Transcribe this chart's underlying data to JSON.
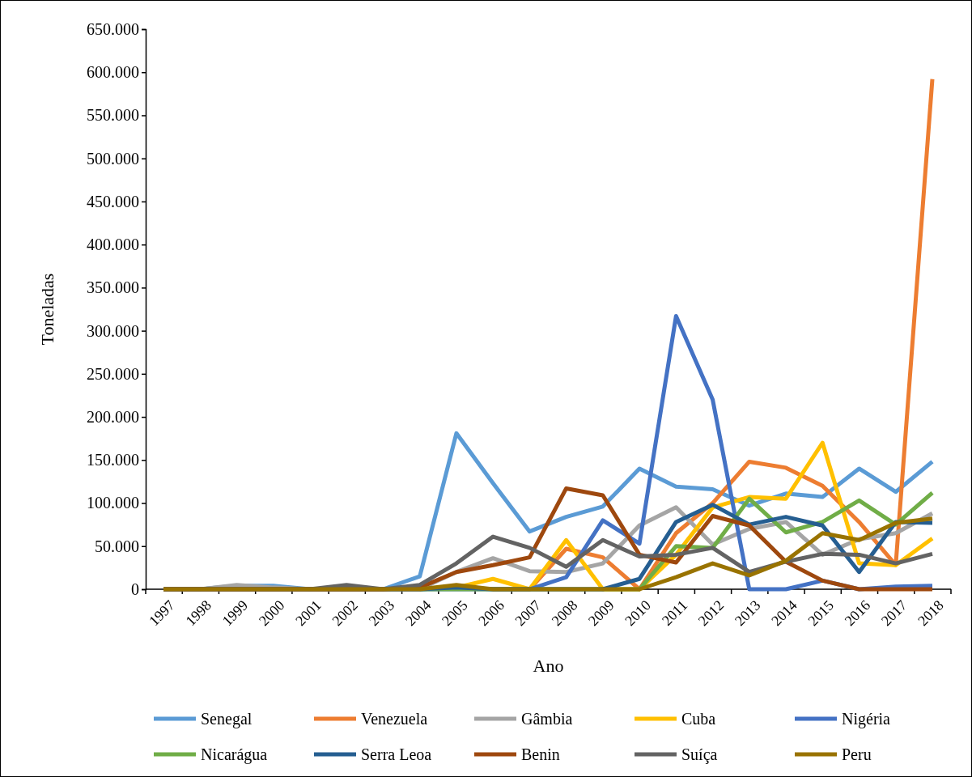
{
  "chart_data": {
    "type": "line",
    "xlabel": "Ano",
    "ylabel": "Toneladas",
    "categories": [
      "1997",
      "1998",
      "1999",
      "2000",
      "2001",
      "2002",
      "2003",
      "2004",
      "2005",
      "2006",
      "2007",
      "2008",
      "2009",
      "2010",
      "2011",
      "2012",
      "2013",
      "2014",
      "2015",
      "2016",
      "2017",
      "2018"
    ],
    "ylim": [
      0,
      650000
    ],
    "yticks": [
      {
        "value": 0,
        "label": "0"
      },
      {
        "value": 50000,
        "label": "50.000"
      },
      {
        "value": 100000,
        "label": "100.000"
      },
      {
        "value": 150000,
        "label": "150.000"
      },
      {
        "value": 200000,
        "label": "200.000"
      },
      {
        "value": 250000,
        "label": "250.000"
      },
      {
        "value": 300000,
        "label": "300.000"
      },
      {
        "value": 350000,
        "label": "350.000"
      },
      {
        "value": 400000,
        "label": "400.000"
      },
      {
        "value": 450000,
        "label": "450.000"
      },
      {
        "value": 500000,
        "label": "500.000"
      },
      {
        "value": 550000,
        "label": "550.000"
      },
      {
        "value": 600000,
        "label": "600.000"
      },
      {
        "value": 650000,
        "label": "650.000"
      }
    ],
    "grid": false,
    "legend": "bottom",
    "marker": "none",
    "line_style": "solid",
    "series": [
      {
        "name": "Senegal",
        "color": "#5b9bd5",
        "values": [
          0,
          0,
          4000,
          4000,
          0,
          0,
          0,
          15000,
          181000,
          123000,
          67000,
          84000,
          96000,
          140000,
          119000,
          116000,
          97000,
          111000,
          107000,
          140000,
          113000,
          148000
        ]
      },
      {
        "name": "Venezuela",
        "color": "#ed7d31",
        "values": [
          null,
          null,
          null,
          null,
          null,
          null,
          null,
          null,
          null,
          0,
          0,
          47000,
          37000,
          0,
          65000,
          100000,
          148000,
          141000,
          120000,
          78000,
          28000,
          592000
        ]
      },
      {
        "name": "Gâmbia",
        "color": "#a5a5a5",
        "values": [
          0,
          0,
          5000,
          2000,
          0,
          0,
          0,
          0,
          20000,
          36000,
          21000,
          20000,
          30000,
          74000,
          95000,
          52000,
          70000,
          78000,
          40000,
          58000,
          65000,
          88000
        ]
      },
      {
        "name": "Cuba",
        "color": "#ffc000",
        "values": [
          null,
          null,
          null,
          null,
          null,
          null,
          null,
          0,
          2000,
          12000,
          0,
          57000,
          0,
          0,
          40000,
          95000,
          107000,
          105000,
          170000,
          30000,
          28000,
          59000
        ]
      },
      {
        "name": "Nigéria",
        "color": "#4472c4",
        "values": [
          0,
          0,
          0,
          0,
          0,
          0,
          0,
          0,
          0,
          0,
          0,
          14000,
          80000,
          53000,
          317000,
          220000,
          0,
          0,
          10000,
          0,
          3000,
          4000
        ]
      },
      {
        "name": "Nicarágua",
        "color": "#70ad47",
        "values": [
          null,
          null,
          null,
          null,
          null,
          null,
          null,
          0,
          0,
          0,
          0,
          0,
          0,
          0,
          50000,
          48000,
          105000,
          66000,
          78000,
          103000,
          75000,
          112000
        ]
      },
      {
        "name": "Serra Leoa",
        "color": "#255e91",
        "values": [
          0,
          0,
          0,
          0,
          0,
          0,
          0,
          0,
          2000,
          0,
          0,
          0,
          0,
          12000,
          78000,
          98000,
          75000,
          84000,
          74000,
          20000,
          78000,
          77000
        ]
      },
      {
        "name": "Benin",
        "color": "#9e480e",
        "values": [
          0,
          0,
          0,
          0,
          0,
          0,
          0,
          2000,
          20000,
          28000,
          37000,
          117000,
          109000,
          40000,
          31000,
          85000,
          74000,
          32000,
          10000,
          0,
          0,
          0
        ]
      },
      {
        "name": "Suíça",
        "color": "#636363",
        "values": [
          0,
          0,
          0,
          0,
          0,
          5000,
          0,
          5000,
          30000,
          61000,
          48000,
          26000,
          57000,
          38000,
          40000,
          48000,
          20000,
          32000,
          41000,
          40000,
          30000,
          41000
        ]
      },
      {
        "name": "Peru",
        "color": "#997300",
        "values": [
          0,
          0,
          0,
          0,
          0,
          0,
          0,
          0,
          5000,
          0,
          0,
          0,
          0,
          0,
          14000,
          30000,
          16000,
          33000,
          65000,
          57000,
          77000,
          82000
        ]
      }
    ]
  }
}
